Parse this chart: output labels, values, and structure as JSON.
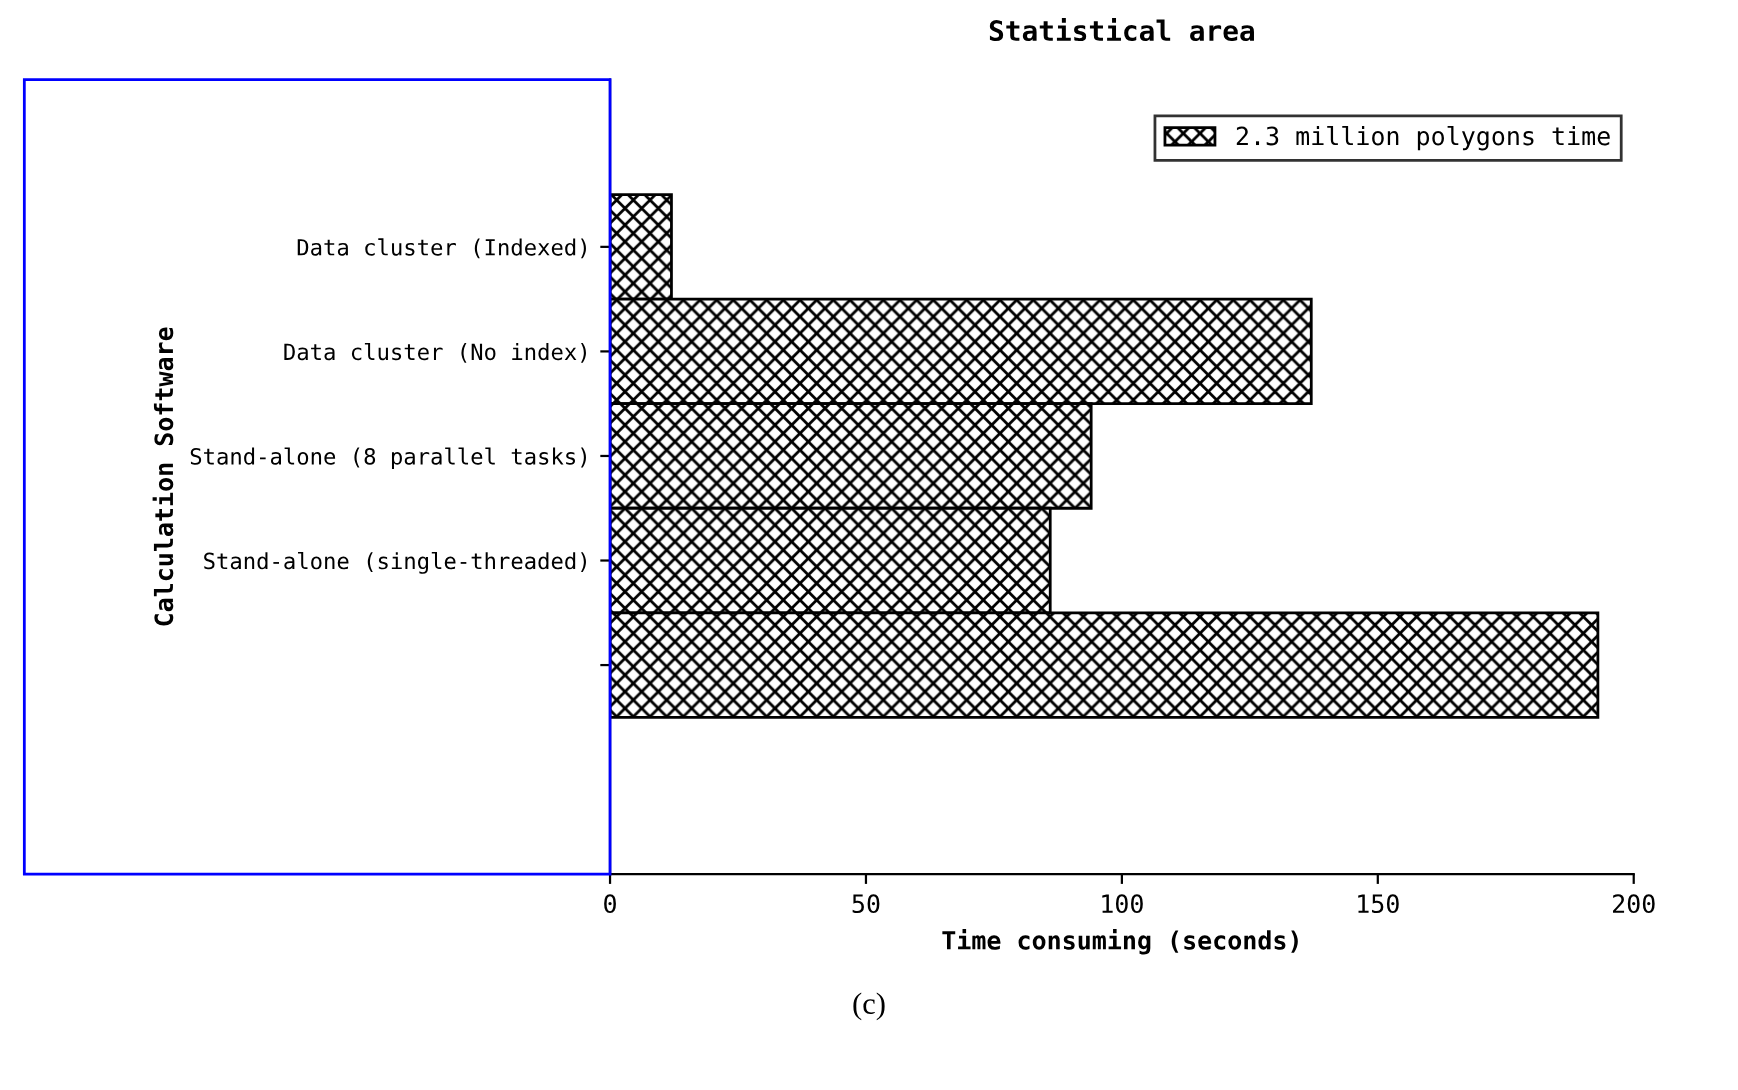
{
  "chart_data": {
    "type": "bar",
    "orientation": "horizontal",
    "title": "Statistical area",
    "xlabel": "Time consuming (seconds)",
    "ylabel": "Calculation Software",
    "categories": [
      "Data cluster (Indexed)",
      "Data cluster (No index)",
      "Stand-alone (8 parallel tasks)",
      "Stand-alone (single-threaded)",
      null
    ],
    "series": [
      {
        "name": "2.3 million polygons time",
        "color": "#000000",
        "values": [
          12,
          137,
          94,
          86,
          193
        ]
      }
    ],
    "xlim": [
      0,
      200
    ],
    "xticks": [
      0,
      50,
      100,
      150,
      200
    ],
    "grid": false,
    "legend": "top right",
    "annotations": [
      "(c)"
    ]
  }
}
